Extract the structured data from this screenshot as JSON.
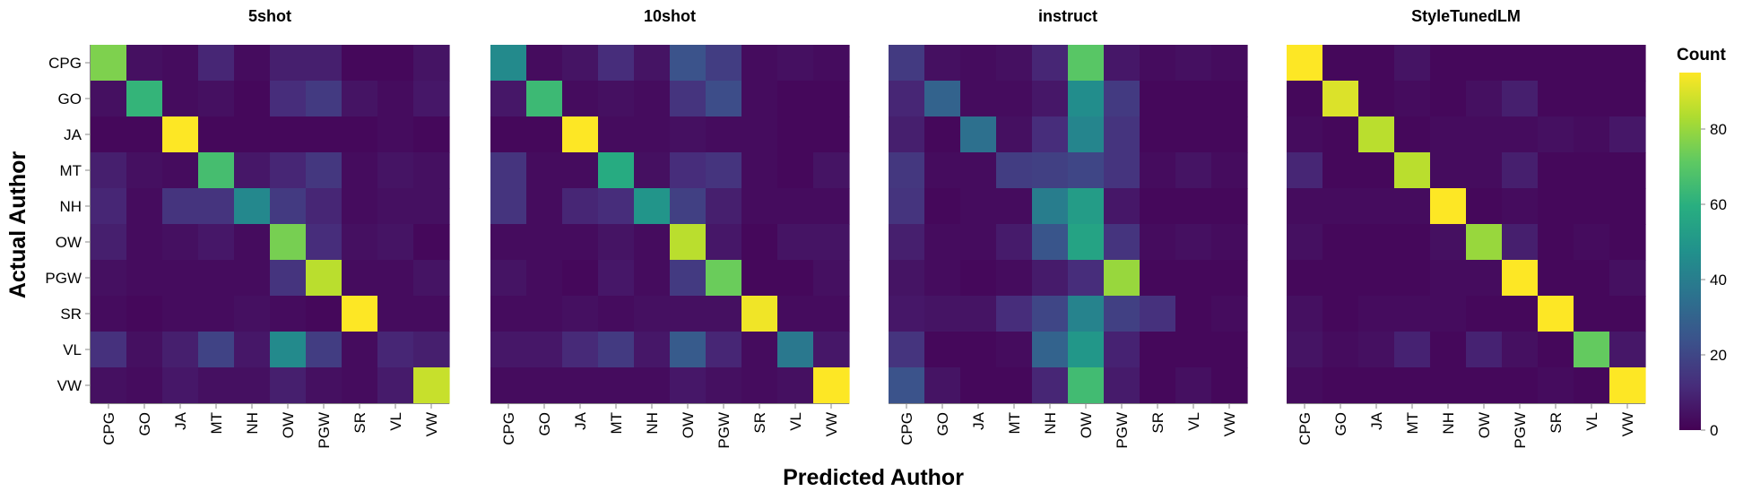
{
  "chart_data": {
    "type": "heatmap",
    "x_title": "Predicted Author",
    "y_title": "Actual Author",
    "authors": [
      "CPG",
      "GO",
      "JA",
      "MT",
      "NH",
      "OW",
      "PGW",
      "SR",
      "VL",
      "VW"
    ],
    "legend": {
      "title": "Count",
      "ticks": [
        0,
        20,
        40,
        60,
        80
      ],
      "range": [
        0,
        95
      ]
    },
    "colorscale": "viridis",
    "panels": [
      {
        "title": "5shot",
        "matrix": [
          [
            76,
            4,
            3,
            10,
            3,
            8,
            8,
            2,
            2,
            5
          ],
          [
            4,
            62,
            3,
            4,
            2,
            12,
            16,
            5,
            3,
            6
          ],
          [
            2,
            2,
            95,
            2,
            2,
            2,
            2,
            2,
            3,
            2
          ],
          [
            8,
            4,
            3,
            66,
            6,
            10,
            15,
            3,
            5,
            4
          ],
          [
            10,
            3,
            14,
            14,
            44,
            16,
            10,
            3,
            4,
            4
          ],
          [
            8,
            3,
            4,
            6,
            3,
            75,
            12,
            4,
            5,
            2
          ],
          [
            4,
            3,
            3,
            3,
            3,
            14,
            85,
            3,
            3,
            5
          ],
          [
            3,
            2,
            3,
            3,
            4,
            3,
            2,
            95,
            3,
            3
          ],
          [
            13,
            4,
            8,
            19,
            6,
            45,
            17,
            3,
            10,
            8
          ],
          [
            4,
            3,
            6,
            4,
            4,
            8,
            4,
            3,
            7,
            87
          ]
        ]
      },
      {
        "title": "10shot",
        "matrix": [
          [
            45,
            3,
            5,
            12,
            5,
            24,
            17,
            3,
            4,
            3
          ],
          [
            6,
            64,
            3,
            4,
            3,
            14,
            22,
            3,
            2,
            2
          ],
          [
            2,
            2,
            95,
            3,
            3,
            4,
            3,
            3,
            2,
            2
          ],
          [
            14,
            3,
            3,
            58,
            4,
            12,
            14,
            3,
            2,
            5
          ],
          [
            14,
            3,
            10,
            12,
            49,
            18,
            8,
            3,
            3,
            3
          ],
          [
            3,
            3,
            3,
            5,
            3,
            85,
            6,
            2,
            5,
            5
          ],
          [
            5,
            3,
            2,
            6,
            3,
            16,
            73,
            2,
            2,
            4
          ],
          [
            3,
            3,
            4,
            3,
            4,
            4,
            4,
            93,
            3,
            3
          ],
          [
            6,
            6,
            11,
            16,
            6,
            27,
            10,
            3,
            38,
            6
          ],
          [
            3,
            3,
            3,
            3,
            3,
            6,
            4,
            3,
            4,
            95
          ]
        ]
      },
      {
        "title": "instruct",
        "matrix": [
          [
            16,
            4,
            3,
            4,
            10,
            70,
            6,
            3,
            4,
            3
          ],
          [
            10,
            30,
            3,
            3,
            6,
            46,
            16,
            2,
            2,
            2
          ],
          [
            8,
            2,
            35,
            4,
            12,
            43,
            14,
            2,
            2,
            2
          ],
          [
            15,
            3,
            3,
            17,
            18,
            20,
            14,
            3,
            5,
            3
          ],
          [
            14,
            2,
            3,
            3,
            40,
            52,
            6,
            2,
            2,
            2
          ],
          [
            8,
            3,
            3,
            7,
            25,
            55,
            14,
            3,
            4,
            3
          ],
          [
            5,
            3,
            2,
            3,
            7,
            12,
            80,
            2,
            2,
            2
          ],
          [
            6,
            5,
            5,
            12,
            20,
            42,
            18,
            13,
            2,
            3
          ],
          [
            14,
            2,
            2,
            3,
            30,
            50,
            9,
            2,
            2,
            2
          ],
          [
            24,
            5,
            2,
            2,
            10,
            65,
            7,
            2,
            4,
            2
          ]
        ]
      },
      {
        "title": "StyleTunedLM",
        "matrix": [
          [
            95,
            2,
            2,
            5,
            2,
            2,
            2,
            2,
            2,
            2
          ],
          [
            2,
            90,
            2,
            3,
            2,
            4,
            8,
            2,
            2,
            2
          ],
          [
            3,
            2,
            85,
            2,
            3,
            3,
            3,
            4,
            3,
            6
          ],
          [
            10,
            2,
            2,
            85,
            3,
            3,
            8,
            2,
            2,
            2
          ],
          [
            3,
            3,
            3,
            3,
            95,
            2,
            3,
            2,
            2,
            2
          ],
          [
            4,
            2,
            2,
            2,
            4,
            80,
            8,
            2,
            3,
            2
          ],
          [
            2,
            2,
            2,
            2,
            3,
            3,
            95,
            2,
            2,
            4
          ],
          [
            4,
            2,
            3,
            3,
            3,
            2,
            2,
            95,
            2,
            2
          ],
          [
            5,
            3,
            4,
            9,
            2,
            9,
            4,
            2,
            72,
            6
          ],
          [
            3,
            2,
            2,
            2,
            2,
            2,
            2,
            3,
            2,
            95
          ]
        ]
      }
    ]
  }
}
